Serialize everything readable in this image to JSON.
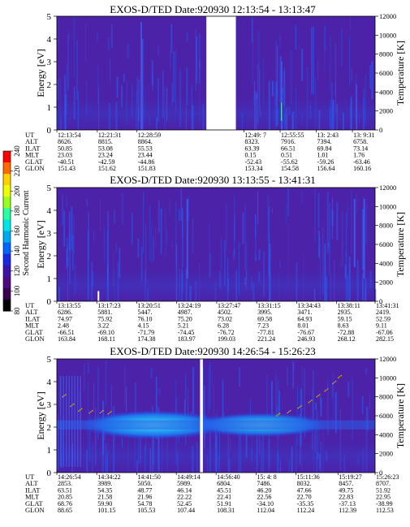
{
  "colorbar": {
    "label": "Second Harmonic Current",
    "ticks": [
      "240",
      "220",
      "200",
      "180",
      "160",
      "140",
      "120",
      "100",
      "80"
    ],
    "colors": [
      "#ff0000",
      "#ff6a00",
      "#ffd200",
      "#f0ff00",
      "#98ff20",
      "#2cffa0",
      "#00e6e6",
      "#00a8f0",
      "#0064ff",
      "#1a28e6",
      "#3c14aa",
      "#500a82",
      "#3a0050",
      "#000000"
    ]
  },
  "colors": {
    "background": "#4b22a8",
    "gap": "#ffffff",
    "stripe": "#2a5cf0",
    "band_core": "#38c8f0",
    "band_mid": "#1e78f0",
    "band_edge": "#2644d8",
    "temperature_dots": "#e8b400"
  },
  "row_labels": [
    "UT",
    "ALT",
    "ILAT",
    "MLT",
    "GLAT",
    "GLON"
  ],
  "chart_data": [
    {
      "type": "heatmap",
      "title": "EXOS-D/TED   Date:920930   12:13:54 - 13:13:47",
      "ylabel": "Energy [eV]",
      "ylim": [
        0,
        5
      ],
      "y_ticks": [
        "0",
        "1",
        "2",
        "3",
        "4",
        "5"
      ],
      "y2label": "Temperature [K]",
      "y2lim": [
        0,
        12000
      ],
      "y2_ticks": [
        "0",
        "2000",
        "4000",
        "6000",
        "8000",
        "10000",
        "12000"
      ],
      "time_range": [
        "12:13:54",
        "13:13:47"
      ],
      "data_gap": [
        "12:38:59",
        "12:49:07"
      ],
      "columns": [
        {
          "UT": "12:13:54",
          "ALT": "8626.",
          "ILAT": "50.85",
          "MLT": "23.03",
          "GLAT": "-40.51",
          "GLON": "151.43"
        },
        {
          "UT": "12:21:31",
          "ALT": "8815.",
          "ILAT": "53.08",
          "MLT": "23.24",
          "GLAT": "-42.59",
          "GLON": "151.62"
        },
        {
          "UT": "12:28:59",
          "ALT": "8864.",
          "ILAT": "55.53",
          "MLT": "23.44",
          "GLAT": "-44.86",
          "GLON": "151.83"
        },
        {
          "UT": "12:49: 7",
          "ALT": "8323.",
          "ILAT": "63.39",
          "MLT": "0.15",
          "GLAT": "-52.43",
          "GLON": "153.34"
        },
        {
          "UT": "12:55:55",
          "ALT": "7916.",
          "ILAT": "66.51",
          "MLT": "0.51",
          "GLAT": "-55.62",
          "GLON": "154.58"
        },
        {
          "UT": "13: 2:43",
          "ALT": "7394.",
          "ILAT": "69.84",
          "MLT": "1.01",
          "GLAT": "-59.26",
          "GLON": "156.64"
        },
        {
          "UT": "13: 9:31",
          "ALT": "6758.",
          "ILAT": "73.14",
          "MLT": "1.76",
          "GLAT": "-63.46",
          "GLON": "160.16"
        }
      ]
    },
    {
      "type": "heatmap",
      "title": "EXOS-D/TED   Date:920930   13:13:55 - 13:41:31",
      "ylabel": "Energy [eV]",
      "ylim": [
        0,
        5
      ],
      "y_ticks": [
        "0",
        "1",
        "2",
        "3",
        "4",
        "5"
      ],
      "y2label": "Temperature [K]",
      "y2lim": [
        0,
        12000
      ],
      "y2_ticks": [
        "0",
        "2000",
        "4000",
        "6000",
        "8000",
        "10000",
        "12000"
      ],
      "time_range": [
        "13:13:55",
        "13:41:31"
      ],
      "columns": [
        {
          "UT": "13:13:55",
          "ALT": "6286.",
          "ILAT": "74.97",
          "MLT": "2.48",
          "GLAT": "-66.51",
          "GLON": "163.84"
        },
        {
          "UT": "13:17:23",
          "ALT": "5881.",
          "ILAT": "75.92",
          "MLT": "3.22",
          "GLAT": "-69.10",
          "GLON": "168.11"
        },
        {
          "UT": "13:20:51",
          "ALT": "5447.",
          "ILAT": "76.10",
          "MLT": "4.15",
          "GLAT": "-71.79",
          "GLON": "174.38"
        },
        {
          "UT": "13:24:19",
          "ALT": "4987.",
          "ILAT": "75.20",
          "MLT": "5.21",
          "GLAT": "-74.45",
          "GLON": "183.97"
        },
        {
          "UT": "13:27:47",
          "ALT": "4502.",
          "ILAT": "73.02",
          "MLT": "6.28",
          "GLAT": "-76.72",
          "GLON": "199.03"
        },
        {
          "UT": "13:31:15",
          "ALT": "3995.",
          "ILAT": "69.58",
          "MLT": "7.23",
          "GLAT": "-77.81",
          "GLON": "221.24"
        },
        {
          "UT": "13:34:43",
          "ALT": "3471.",
          "ILAT": "64.93",
          "MLT": "8.01",
          "GLAT": "-76.67",
          "GLON": "246.93"
        },
        {
          "UT": "13:38:11",
          "ALT": "2935.",
          "ILAT": "59.15",
          "MLT": "8.63",
          "GLAT": "-72.88",
          "GLON": "268.12"
        },
        {
          "UT": "13:41:31",
          "ALT": "2419.",
          "ILAT": "52.59",
          "MLT": "9.11",
          "GLAT": "-67.06",
          "GLON": "282.15"
        }
      ]
    },
    {
      "type": "heatmap",
      "title": "EXOS-D/TED   Date:920930   14:26:54 - 15:26:23",
      "ylabel": "Energy [eV]",
      "ylim": [
        0,
        5
      ],
      "y_ticks": [
        "0",
        "1",
        "2",
        "3",
        "4",
        "5"
      ],
      "y2label": "Temperature [K]",
      "y2lim": [
        0,
        12000
      ],
      "y2_ticks": [
        "0",
        "2000",
        "4000",
        "6000",
        "8000",
        "10000",
        "12000"
      ],
      "time_range": [
        "14:26:54",
        "15:26:23"
      ],
      "band_energy": 2.1,
      "columns": [
        {
          "UT": "14:26:54",
          "ALT": "2853.",
          "ILAT": "63.51",
          "MLT": "20.85",
          "GLAT": "68.76",
          "GLON": "88.65"
        },
        {
          "UT": "14:34:22",
          "ALT": "3989.",
          "ILAT": "54.35",
          "MLT": "21.58",
          "GLAT": "59.90",
          "GLON": "101.15"
        },
        {
          "UT": "14:41:50",
          "ALT": "5050.",
          "ILAT": "48.77",
          "MLT": "21.96",
          "GLAT": "54.78",
          "GLON": "105.53"
        },
        {
          "UT": "14:49:14",
          "ALT": "5989.",
          "ILAT": "46.14",
          "MLT": "22.22",
          "GLAT": "52.45",
          "GLON": "107.44"
        },
        {
          "UT": "14:56:40",
          "ALT": "6804.",
          "ILAT": "45.51",
          "MLT": "22.41",
          "GLAT": "51.91",
          "GLON": "108.31"
        },
        {
          "UT": "15: 4: 8",
          "ALT": "7486.",
          "ILAT": "46.20",
          "MLT": "22.56",
          "GLAT": "-34.10",
          "GLON": "112.04"
        },
        {
          "UT": "15:11:36",
          "ALT": "8032.",
          "ILAT": "47.66",
          "MLT": "22.70",
          "GLAT": "-35.35",
          "GLON": "112.24"
        },
        {
          "UT": "15:19:27",
          "ALT": "8457.",
          "ILAT": "49.75",
          "MLT": "22.83",
          "GLAT": "-37.13",
          "GLON": "112.39"
        },
        {
          "UT": "15:26:23",
          "ALT": "8707.",
          "ILAT": "51.92",
          "MLT": "22.95",
          "GLAT": "-38.99",
          "GLON": "112.53"
        }
      ]
    }
  ]
}
